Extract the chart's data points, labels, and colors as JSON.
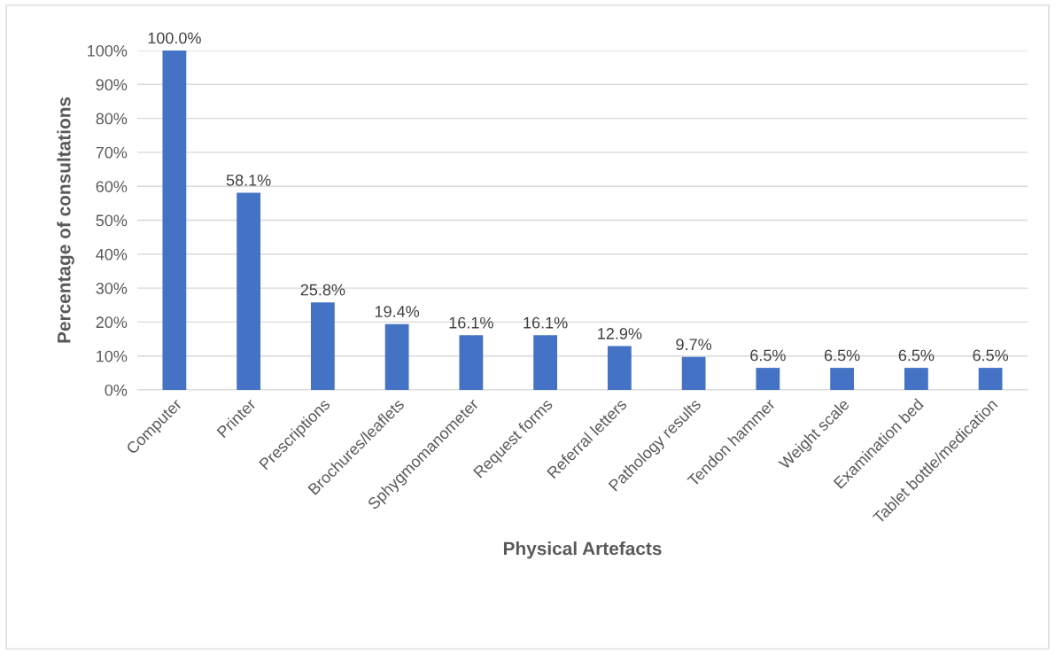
{
  "chart_data": {
    "type": "bar",
    "xlabel": "Physical Artefacts",
    "ylabel": "Percentage of consultations",
    "categories": [
      "Computer",
      "Printer",
      "Prescriptions",
      "Brochures/leaflets",
      "Sphygmomanometer",
      "Request forms",
      "Referral letters",
      "Pathology results",
      "Tendon hammer",
      "Weight scale",
      "Examination bed",
      "Tablet bottle/medication"
    ],
    "values": [
      100.0,
      58.1,
      25.8,
      19.4,
      16.1,
      16.1,
      12.9,
      9.7,
      6.5,
      6.5,
      6.5,
      6.5
    ],
    "value_labels": [
      "100.0%",
      "58.1%",
      "25.8%",
      "19.4%",
      "16.1%",
      "16.1%",
      "12.9%",
      "9.7%",
      "6.5%",
      "6.5%",
      "6.5%",
      "6.5%"
    ],
    "color": "#4472c4",
    "ylim": [
      0,
      100
    ],
    "yticks": [
      {
        "value": 0,
        "label": "0%"
      },
      {
        "value": 10,
        "label": "10%"
      },
      {
        "value": 20,
        "label": "20%"
      },
      {
        "value": 30,
        "label": "30%"
      },
      {
        "value": 40,
        "label": "40%"
      },
      {
        "value": 50,
        "label": "50%"
      },
      {
        "value": 60,
        "label": "60%"
      },
      {
        "value": 70,
        "label": "70%"
      },
      {
        "value": 80,
        "label": "80%"
      },
      {
        "value": 90,
        "label": "90%"
      },
      {
        "value": 100,
        "label": "100%"
      }
    ],
    "grid": "y"
  }
}
